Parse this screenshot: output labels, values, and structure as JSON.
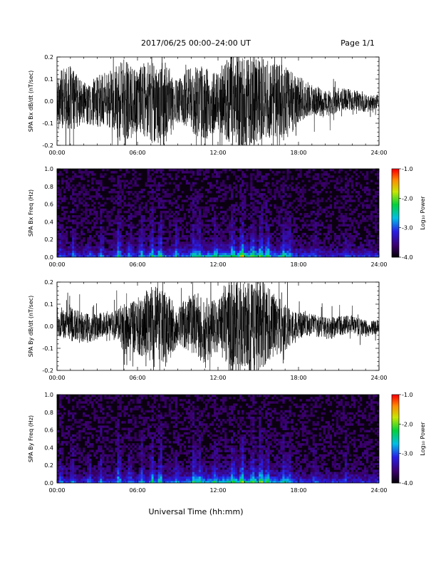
{
  "header": {
    "title": "2017/06/25  00:00–24:00 UT",
    "page": "Page 1/1"
  },
  "xlabel": "Universal Time (hh:mm)",
  "colorbar": {
    "label": "Log₁₀ Power",
    "ticks": [
      "-1.0",
      "-2.0",
      "-3.0",
      "-4.0"
    ],
    "range": [
      -4.0,
      -1.0
    ]
  },
  "chart_data": [
    {
      "type": "line",
      "ylabel": "SPA Bx dB/dt (nT/sec)",
      "xlim": [
        0,
        24
      ],
      "ylim": [
        -0.2,
        0.2
      ],
      "x_tick_labels": [
        "00:00",
        "06:00",
        "12:00",
        "18:00",
        "24:00"
      ],
      "y_tick_labels": [
        "0.2",
        "0.1",
        "0.0",
        "-0.1",
        "-0.2"
      ],
      "envelope": {
        "hours": [
          0,
          1,
          2,
          3,
          4,
          5,
          6,
          7,
          8,
          9,
          10,
          11,
          12,
          13,
          14,
          15,
          16,
          17,
          18,
          19,
          20,
          21,
          22,
          23,
          24
        ],
        "amplitude": [
          0.13,
          0.15,
          0.09,
          0.12,
          0.13,
          0.2,
          0.14,
          0.2,
          0.2,
          0.09,
          0.15,
          0.17,
          0.13,
          0.22,
          0.22,
          0.21,
          0.17,
          0.17,
          0.11,
          0.07,
          0.06,
          0.05,
          0.05,
          0.04,
          0.03
        ]
      }
    },
    {
      "type": "heatmap",
      "ylabel": "SPA Bx Freq (Hz)",
      "xlim": [
        0,
        24
      ],
      "ylim": [
        0.0,
        1.0
      ],
      "x_tick_labels": [
        "00:00",
        "06:00",
        "12:00",
        "18:00",
        "24:00"
      ],
      "y_tick_labels": [
        "1.0",
        "0.8",
        "0.6",
        "0.4",
        "0.2",
        "0.0"
      ]
    },
    {
      "type": "line",
      "ylabel": "SPA By dB/dt (nT/sec)",
      "xlim": [
        0,
        24
      ],
      "ylim": [
        -0.2,
        0.2
      ],
      "x_tick_labels": [
        "00:00",
        "06:00",
        "12:00",
        "18:00",
        "24:00"
      ],
      "y_tick_labels": [
        "0.2",
        "0.1",
        "0.0",
        "-0.1",
        "-0.2"
      ],
      "envelope": {
        "hours": [
          0,
          1,
          2,
          3,
          4,
          5,
          6,
          7,
          8,
          9,
          10,
          11,
          12,
          13,
          14,
          15,
          16,
          17,
          18,
          19,
          20,
          21,
          22,
          23,
          24
        ],
        "amplitude": [
          0.05,
          0.08,
          0.07,
          0.06,
          0.05,
          0.12,
          0.13,
          0.17,
          0.19,
          0.08,
          0.14,
          0.16,
          0.12,
          0.22,
          0.22,
          0.21,
          0.16,
          0.11,
          0.06,
          0.05,
          0.05,
          0.05,
          0.04,
          0.04,
          0.03
        ]
      }
    },
    {
      "type": "heatmap",
      "ylabel": "SPA By Freq (Hz)",
      "xlim": [
        0,
        24
      ],
      "ylim": [
        0.0,
        1.0
      ],
      "x_tick_labels": [
        "00:00",
        "06:00",
        "12:00",
        "18:00",
        "24:00"
      ],
      "y_tick_labels": [
        "1.0",
        "0.8",
        "0.6",
        "0.4",
        "0.2",
        "0.0"
      ]
    }
  ]
}
